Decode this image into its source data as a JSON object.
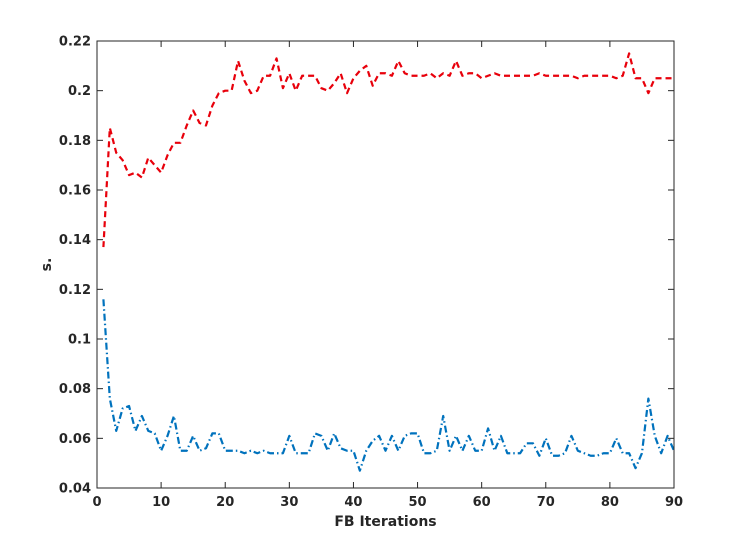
{
  "chart_data": {
    "type": "line",
    "xlabel": "FB Iterations",
    "ylabel": "s.",
    "xlim": [
      0,
      90
    ],
    "ylim": [
      0.04,
      0.22
    ],
    "xticks": [
      0,
      10,
      20,
      30,
      40,
      50,
      60,
      70,
      80,
      90
    ],
    "yticks": [
      0.04,
      0.06,
      0.08,
      0.1,
      0.12,
      0.14,
      0.16,
      0.18,
      0.2,
      0.22
    ],
    "xtick_labels": [
      "0",
      "10",
      "20",
      "30",
      "40",
      "50",
      "60",
      "70",
      "80",
      "90"
    ],
    "ytick_labels": [
      "0.04",
      "0.06",
      "0.08",
      "0.1",
      "0.12",
      "0.14",
      "0.16",
      "0.18",
      "0.2",
      "0.22"
    ],
    "grid": false,
    "series": [
      {
        "color": "#e8000b",
        "dash": "dashed",
        "x": [
          1,
          2,
          3,
          4,
          5,
          6,
          7,
          8,
          9,
          10,
          11,
          12,
          13,
          14,
          15,
          16,
          17,
          18,
          19,
          20,
          21,
          22,
          23,
          24,
          25,
          26,
          27,
          28,
          29,
          30,
          31,
          32,
          33,
          34,
          35,
          36,
          37,
          38,
          39,
          40,
          41,
          42,
          43,
          44,
          45,
          46,
          47,
          48,
          49,
          50,
          51,
          52,
          53,
          54,
          55,
          56,
          57,
          58,
          59,
          60,
          61,
          62,
          63,
          64,
          65,
          66,
          67,
          68,
          69,
          70,
          71,
          72,
          73,
          74,
          75,
          76,
          77,
          78,
          79,
          80,
          81,
          82,
          83,
          84,
          85,
          86,
          87,
          88,
          89,
          90
        ],
        "values": [
          0.137,
          0.185,
          0.175,
          0.172,
          0.166,
          0.167,
          0.165,
          0.173,
          0.17,
          0.167,
          0.174,
          0.179,
          0.179,
          0.186,
          0.192,
          0.187,
          0.186,
          0.194,
          0.199,
          0.2,
          0.2,
          0.212,
          0.204,
          0.199,
          0.2,
          0.206,
          0.206,
          0.213,
          0.201,
          0.207,
          0.2,
          0.206,
          0.206,
          0.206,
          0.201,
          0.2,
          0.203,
          0.207,
          0.199,
          0.205,
          0.208,
          0.21,
          0.202,
          0.207,
          0.207,
          0.206,
          0.212,
          0.207,
          0.206,
          0.206,
          0.206,
          0.207,
          0.205,
          0.207,
          0.206,
          0.212,
          0.206,
          0.207,
          0.207,
          0.205,
          0.206,
          0.207,
          0.206,
          0.206,
          0.206,
          0.206,
          0.206,
          0.206,
          0.207,
          0.206,
          0.206,
          0.206,
          0.206,
          0.206,
          0.205,
          0.206,
          0.206,
          0.206,
          0.206,
          0.206,
          0.205,
          0.206,
          0.215,
          0.205,
          0.205,
          0.199,
          0.205,
          0.205,
          0.205,
          0.205
        ]
      },
      {
        "color": "#0072bd",
        "dash": "dashdot",
        "x": [
          1,
          2,
          3,
          4,
          5,
          6,
          7,
          8,
          9,
          10,
          11,
          12,
          13,
          14,
          15,
          16,
          17,
          18,
          19,
          20,
          21,
          22,
          23,
          24,
          25,
          26,
          27,
          28,
          29,
          30,
          31,
          32,
          33,
          34,
          35,
          36,
          37,
          38,
          39,
          40,
          41,
          42,
          43,
          44,
          45,
          46,
          47,
          48,
          49,
          50,
          51,
          52,
          53,
          54,
          55,
          56,
          57,
          58,
          59,
          60,
          61,
          62,
          63,
          64,
          65,
          66,
          67,
          68,
          69,
          70,
          71,
          72,
          73,
          74,
          75,
          76,
          77,
          78,
          79,
          80,
          81,
          82,
          83,
          84,
          85,
          86,
          87,
          88,
          89,
          90
        ],
        "values": [
          0.116,
          0.076,
          0.063,
          0.072,
          0.073,
          0.063,
          0.069,
          0.063,
          0.062,
          0.055,
          0.061,
          0.069,
          0.055,
          0.055,
          0.061,
          0.055,
          0.056,
          0.062,
          0.062,
          0.055,
          0.055,
          0.055,
          0.054,
          0.055,
          0.054,
          0.055,
          0.054,
          0.054,
          0.054,
          0.061,
          0.054,
          0.054,
          0.054,
          0.062,
          0.061,
          0.055,
          0.062,
          0.056,
          0.055,
          0.055,
          0.047,
          0.055,
          0.059,
          0.061,
          0.055,
          0.061,
          0.055,
          0.061,
          0.062,
          0.062,
          0.054,
          0.054,
          0.055,
          0.069,
          0.055,
          0.061,
          0.055,
          0.061,
          0.055,
          0.055,
          0.064,
          0.055,
          0.061,
          0.054,
          0.054,
          0.054,
          0.058,
          0.058,
          0.053,
          0.06,
          0.053,
          0.053,
          0.054,
          0.061,
          0.055,
          0.054,
          0.053,
          0.053,
          0.054,
          0.054,
          0.06,
          0.054,
          0.054,
          0.048,
          0.054,
          0.076,
          0.061,
          0.054,
          0.061,
          0.055
        ]
      }
    ]
  }
}
